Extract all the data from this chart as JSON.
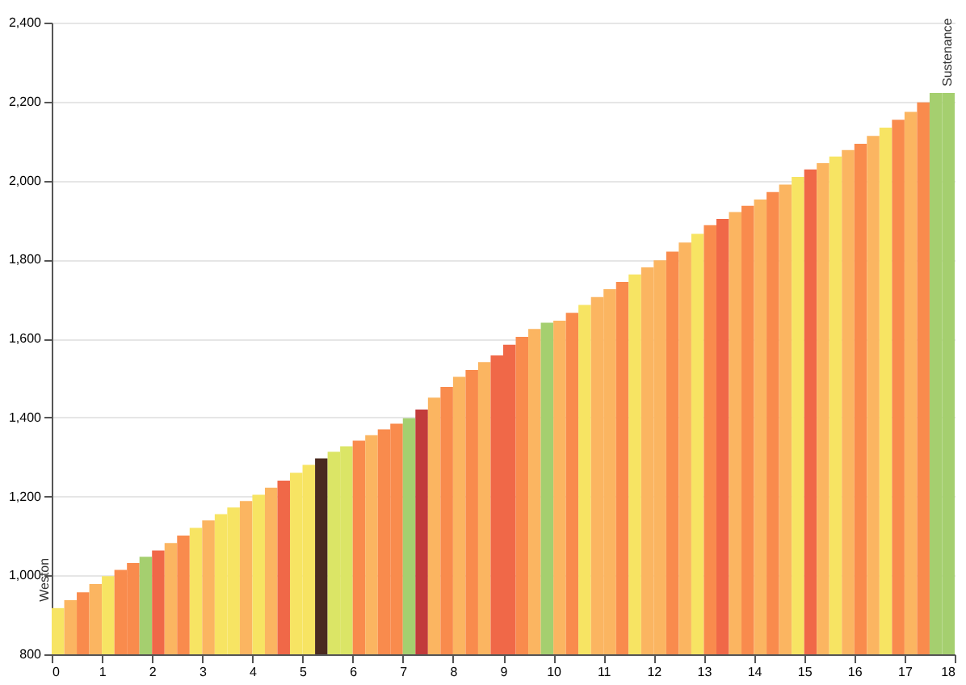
{
  "chart_data": {
    "type": "bar",
    "x": [
      0.125,
      0.375,
      0.625,
      0.875,
      1.125,
      1.375,
      1.625,
      1.875,
      2.125,
      2.375,
      2.625,
      2.875,
      3.125,
      3.375,
      3.625,
      3.875,
      4.125,
      4.375,
      4.625,
      4.875,
      5.125,
      5.375,
      5.625,
      5.875,
      6.125,
      6.375,
      6.625,
      6.875,
      7.125,
      7.375,
      7.625,
      7.875,
      8.125,
      8.375,
      8.625,
      8.875,
      9.125,
      9.375,
      9.625,
      9.875,
      10.125,
      10.375,
      10.625,
      10.875,
      11.125,
      11.375,
      11.625,
      11.875,
      12.125,
      12.375,
      12.625,
      12.875,
      13.125,
      13.375,
      13.625,
      13.875,
      14.125,
      14.375,
      14.625,
      14.875,
      15.125,
      15.375,
      15.625,
      15.875,
      16.125,
      16.375,
      16.625,
      16.875,
      17.125,
      17.375,
      17.625,
      17.875
    ],
    "values": [
      917,
      937,
      957,
      978,
      998,
      1014,
      1031,
      1047,
      1063,
      1082,
      1101,
      1120,
      1139,
      1155,
      1172,
      1188,
      1204,
      1222,
      1240,
      1260,
      1280,
      1296,
      1313,
      1327,
      1341,
      1355,
      1370,
      1384,
      1398,
      1420,
      1450,
      1477,
      1503,
      1520,
      1540,
      1557,
      1584,
      1604,
      1624,
      1640,
      1645,
      1665,
      1685,
      1705,
      1725,
      1743,
      1762,
      1780,
      1798,
      1820,
      1843,
      1865,
      1887,
      1903,
      1920,
      1936,
      1952,
      1971,
      1990,
      2009,
      2028,
      2044,
      2061,
      2077,
      2093,
      2113,
      2134,
      2154,
      2174,
      2198,
      2222,
      2222
    ],
    "colors": [
      "#f7e463",
      "#fbb561",
      "#f98b4d",
      "#fbb561",
      "#f7e463",
      "#f98b4d",
      "#f98b4d",
      "#a5cf6f",
      "#f06848",
      "#fbb561",
      "#f98b4d",
      "#f7e463",
      "#fbb561",
      "#f7e463",
      "#f7e463",
      "#fbb561",
      "#f7e463",
      "#fbb561",
      "#f06848",
      "#f7e463",
      "#f7e463",
      "#4a2a20",
      "#dbe566",
      "#dbe566",
      "#f98b4d",
      "#fbb561",
      "#f98b4d",
      "#f98b4d",
      "#a5cf6f",
      "#c23b3b",
      "#fbb561",
      "#f98b4d",
      "#fbb561",
      "#f98b4d",
      "#fbb561",
      "#f06848",
      "#f06848",
      "#f98b4d",
      "#fbb561",
      "#a5cf6f",
      "#fbb561",
      "#f98b4d",
      "#f7e463",
      "#fbb561",
      "#fbb561",
      "#f98b4d",
      "#f7e463",
      "#fbb561",
      "#fbb561",
      "#f98b4d",
      "#fbb561",
      "#f7e463",
      "#f98b4d",
      "#f06848",
      "#fbb561",
      "#f98b4d",
      "#fbb561",
      "#f98b4d",
      "#fbb561",
      "#f7e463",
      "#f06848",
      "#fbb561",
      "#f7e463",
      "#fbb561",
      "#f98b4d",
      "#fbb561",
      "#f7e463",
      "#f98b4d",
      "#fbb561",
      "#f98b4d",
      "#a5cf6f",
      "#a5cf6f"
    ],
    "xlim": [
      0,
      18
    ],
    "xticks": [
      0,
      1,
      2,
      3,
      4,
      5,
      6,
      7,
      8,
      9,
      10,
      11,
      12,
      13,
      14,
      15,
      16,
      17,
      18
    ],
    "ylim": [
      800,
      2400
    ],
    "yticks": [
      {
        "value": 800,
        "label": "800"
      },
      {
        "value": 1000,
        "label": "1,000"
      },
      {
        "value": 1200,
        "label": "1,200"
      },
      {
        "value": 1400,
        "label": "1,400"
      },
      {
        "value": 1600,
        "label": "1,600"
      },
      {
        "value": 1800,
        "label": "1,800"
      },
      {
        "value": 2000,
        "label": "2,000"
      },
      {
        "value": 2200,
        "label": "2,200"
      },
      {
        "value": 2400,
        "label": "2,400"
      }
    ],
    "grid": "y",
    "annotations": [
      "Weston",
      "Sustenance"
    ]
  }
}
